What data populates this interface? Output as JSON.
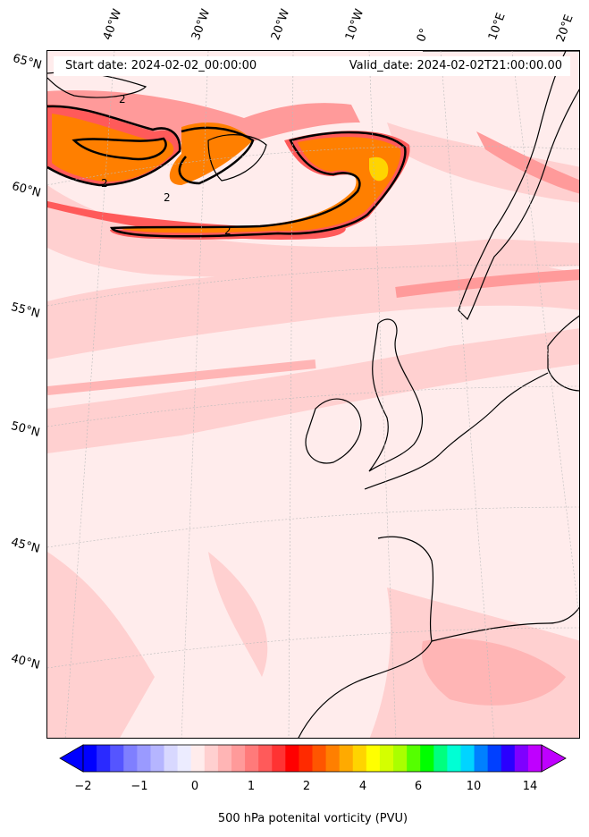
{
  "header": {
    "start_date": "Start date: 2024-02-02_00:00:00",
    "valid_date": "Valid_date: 2024-02-02T21:00:00.00"
  },
  "longitude_labels": [
    "40°W",
    "30°W",
    "20°W",
    "10°W",
    "0°",
    "10°E",
    "20°E"
  ],
  "latitude_labels": [
    "65°N",
    "60°N",
    "55°N",
    "50°N",
    "45°N",
    "40°N"
  ],
  "contour_labels": [
    "2",
    "2",
    "2",
    "2"
  ],
  "colorbar": {
    "ticks": [
      "−2",
      "−1",
      "0",
      "1",
      "2",
      "4",
      "6",
      "10",
      "14"
    ],
    "label": "500 hPa potenital vorticity (PVU)",
    "colors": [
      "#0000ff",
      "#2a2aff",
      "#5555ff",
      "#7f7fff",
      "#9a9aff",
      "#b5b5ff",
      "#d8d8ff",
      "#ececff",
      "#ffecec",
      "#ffd0d0",
      "#ffb5b5",
      "#ff9a9a",
      "#ff7a7a",
      "#ff5a5a",
      "#ff3333",
      "#ff0000",
      "#ff2a00",
      "#ff5500",
      "#ff7f00",
      "#ffaa00",
      "#ffd400",
      "#ffff00",
      "#d4ff00",
      "#aaff00",
      "#55ff00",
      "#00ff00",
      "#00ff7f",
      "#00ffd4",
      "#00d4ff",
      "#0080ff",
      "#0040ff",
      "#2a00ff",
      "#7f00ff",
      "#bf00ff"
    ]
  },
  "colors": {
    "pv_low": "#ffecec",
    "pv_moderate": "#ffb5b5",
    "pv_high": "#ff3333",
    "pv_very_high": "#ff7f00",
    "coast": "#000000"
  }
}
